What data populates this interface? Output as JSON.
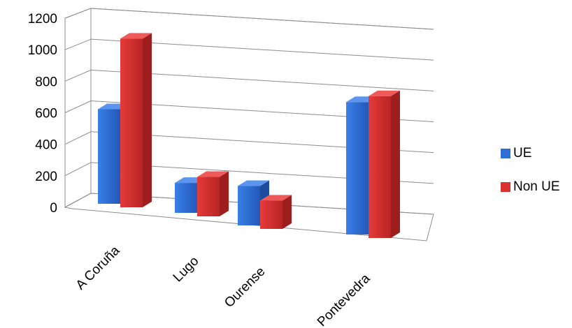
{
  "chart_data": {
    "type": "bar",
    "categories": [
      "A Coruña",
      "Lugo",
      "Ourense",
      "Pontevedra"
    ],
    "series": [
      {
        "name": "UE",
        "values": [
          600,
          190,
          250,
          840
        ],
        "color": "#2E6FD6"
      },
      {
        "name": "Non UE",
        "values": [
          1070,
          250,
          180,
          900
        ],
        "color": "#D93030"
      }
    ],
    "ylim": [
      0,
      1200
    ],
    "yticks": [
      "0",
      "200",
      "400",
      "600",
      "800",
      "1000",
      "1200"
    ],
    "grid": true,
    "legend": "right"
  }
}
